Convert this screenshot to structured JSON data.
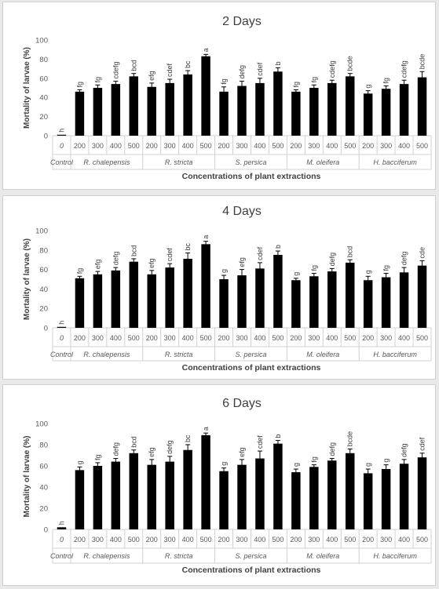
{
  "chart_data": [
    {
      "type": "bar",
      "title": "2 Days",
      "ylabel": "Mortality of larvae (%)",
      "xlabel": "Concentrations of plant extractions",
      "ylim": [
        0,
        100
      ],
      "yticks": [
        0,
        20,
        40,
        60,
        80,
        100
      ],
      "groups": [
        "Control",
        "R. chalepensis",
        "R. stricta",
        "S. persica",
        "M. oleifera",
        "H. bacciferum"
      ],
      "concentrations": [
        "0",
        "200",
        "300",
        "400",
        "500",
        "200",
        "300",
        "400",
        "500",
        "200",
        "300",
        "400",
        "500",
        "200",
        "300",
        "400",
        "500",
        "200",
        "300",
        "400",
        "500"
      ],
      "values": [
        1,
        46,
        50,
        54,
        62,
        51,
        55,
        64,
        83,
        46,
        52,
        55,
        67,
        46,
        50,
        55,
        62,
        44,
        49,
        54,
        61
      ],
      "errors": [
        0,
        2,
        3,
        3,
        3,
        4,
        4,
        4,
        2,
        5,
        5,
        5,
        4,
        2,
        3,
        3,
        3,
        3,
        3,
        4,
        6
      ],
      "significance": [
        "h",
        "fg",
        "fg",
        "cdefg",
        "bcd",
        "efg",
        "cdef",
        "bc",
        "a",
        "fg",
        "defg",
        "cdef",
        "b",
        "fg",
        "fg",
        "cdefg",
        "bcde",
        "g",
        "fg",
        "cdefg",
        "bcde"
      ],
      "grid": false,
      "legend": "none"
    },
    {
      "type": "bar",
      "title": "4 Days",
      "ylabel": "Mortality of larvae (%)",
      "xlabel": "Concentrations of plant extractions",
      "ylim": [
        0,
        100
      ],
      "yticks": [
        0,
        20,
        40,
        60,
        80,
        100
      ],
      "groups": [
        "Control",
        "R. chalepensis",
        "R. stricta",
        "S. persica",
        "M. oleifera",
        "H. bacciferum"
      ],
      "concentrations": [
        "0",
        "200",
        "300",
        "400",
        "500",
        "200",
        "300",
        "400",
        "500",
        "200",
        "300",
        "400",
        "500",
        "200",
        "300",
        "400",
        "500",
        "200",
        "300",
        "400",
        "500"
      ],
      "values": [
        1,
        51,
        55,
        59,
        68,
        55,
        62,
        71,
        86,
        50,
        54,
        61,
        75,
        49,
        53,
        58,
        67,
        49,
        52,
        57,
        64
      ],
      "errors": [
        0,
        2,
        3,
        3,
        3,
        4,
        4,
        6,
        3,
        4,
        6,
        6,
        4,
        2,
        3,
        3,
        3,
        4,
        4,
        5,
        5
      ],
      "significance": [
        "h",
        "fg",
        "efg",
        "defg",
        "bcd",
        "efg",
        "cdef",
        "bc",
        "a",
        "g",
        "efg",
        "cdef",
        "b",
        "g",
        "fg",
        "defg",
        "bcd",
        "g",
        "fg",
        "defg",
        "cde"
      ],
      "grid": false,
      "legend": "none"
    },
    {
      "type": "bar",
      "title": "6 Days",
      "ylabel": "Mortality of larvae (%)",
      "xlabel": "Concentrations of plant extractions",
      "ylim": [
        0,
        100
      ],
      "yticks": [
        0,
        20,
        40,
        60,
        80,
        100
      ],
      "groups": [
        "Control",
        "R. chalepensis",
        "R. stricta",
        "S. persica",
        "M. oleifera",
        "H. bacciferum"
      ],
      "concentrations": [
        "0",
        "200",
        "300",
        "400",
        "500",
        "200",
        "300",
        "400",
        "500",
        "200",
        "300",
        "400",
        "500",
        "200",
        "300",
        "400",
        "500",
        "200",
        "300",
        "400",
        "500"
      ],
      "values": [
        2,
        56,
        60,
        64,
        72,
        61,
        64,
        75,
        89,
        55,
        61,
        67,
        81,
        54,
        59,
        65,
        72,
        53,
        57,
        62,
        68
      ],
      "errors": [
        0,
        3,
        3,
        3,
        3,
        5,
        5,
        5,
        2,
        3,
        5,
        7,
        3,
        3,
        2,
        2,
        4,
        4,
        4,
        4,
        4
      ],
      "significance": [
        "h",
        "g",
        "fg",
        "defg",
        "bcd",
        "efg",
        "defg",
        "bc",
        "a",
        "g",
        "efg",
        "cdef",
        "b",
        "g",
        "fg",
        "defg",
        "bcde",
        "g",
        "g",
        "defg",
        "cdef"
      ],
      "grid": false,
      "legend": "none"
    }
  ],
  "colors": {
    "bar": "#000000",
    "axis": "#d0d0d0",
    "text": "#595959",
    "title": "#404040",
    "panel": "#ffffff",
    "background": "#e9e9e9"
  }
}
